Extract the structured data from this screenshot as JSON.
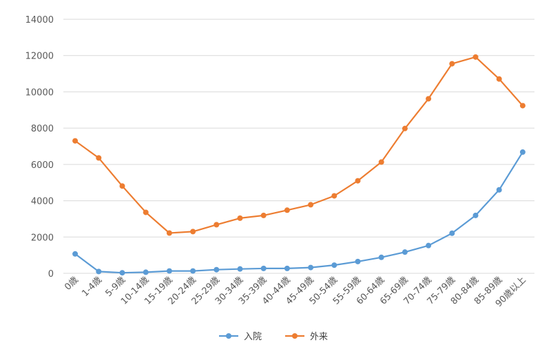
{
  "chart_data": {
    "type": "line",
    "categories": [
      "0歳",
      "1-4歳",
      "5-9歳",
      "10-14歳",
      "15-19歳",
      "20-24歳",
      "25-29歳",
      "30-34歳",
      "35-39歳",
      "40-44歳",
      "45-49歳",
      "50-54歳",
      "55-59歳",
      "60-64歳",
      "65-69歳",
      "70-74歳",
      "75-79歳",
      "80-84歳",
      "85-89歳",
      "90歳以上"
    ],
    "series": [
      {
        "name": "入院",
        "color": "#5b9bd5",
        "values": [
          1070,
          100,
          30,
          60,
          130,
          130,
          200,
          240,
          270,
          270,
          320,
          450,
          650,
          880,
          1170,
          1530,
          2210,
          3190,
          4600,
          6680
        ]
      },
      {
        "name": "外来",
        "color": "#ed7d31",
        "values": [
          7300,
          6360,
          4810,
          3360,
          2220,
          2300,
          2680,
          3040,
          3190,
          3480,
          3780,
          4270,
          5100,
          6130,
          7980,
          9620,
          11550,
          11920,
          10710,
          9240
        ]
      }
    ],
    "ylim": [
      0,
      14000
    ],
    "yticks": [
      0,
      2000,
      4000,
      6000,
      8000,
      10000,
      12000,
      14000
    ],
    "grid": true,
    "legend": "bottom"
  }
}
